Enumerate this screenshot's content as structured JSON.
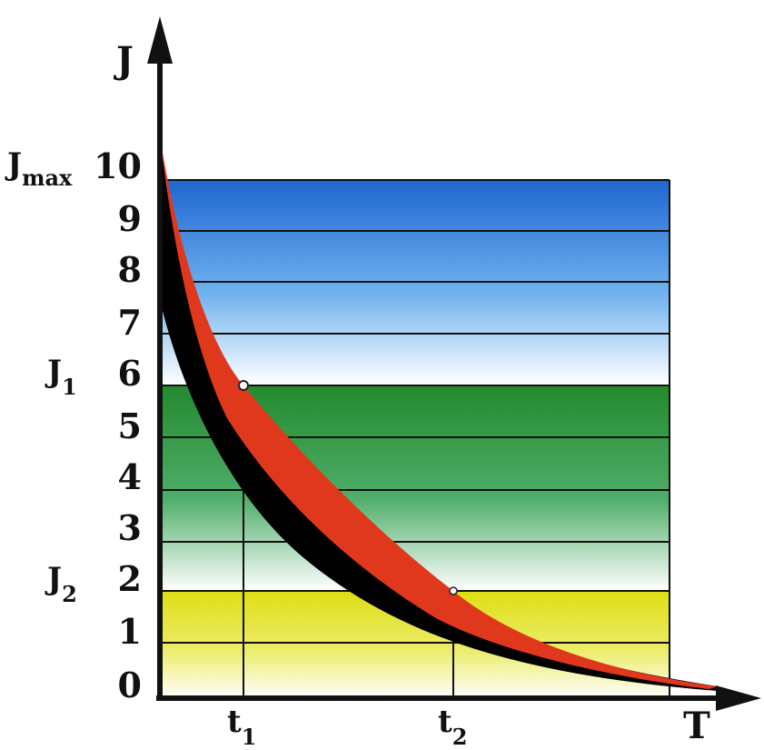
{
  "axis": {
    "y_name": "J",
    "x_name": "T",
    "y_ticks": [
      "0",
      "1",
      "2",
      "3",
      "4",
      "5",
      "6",
      "7",
      "8",
      "9",
      "10"
    ]
  },
  "y_markers": [
    {
      "base": "J",
      "sub": "max"
    },
    {
      "base": "J",
      "sub": "1"
    },
    {
      "base": "J",
      "sub": "2"
    }
  ],
  "x_markers": [
    {
      "base": "t",
      "sub": "1"
    },
    {
      "base": "t",
      "sub": "2"
    }
  ],
  "colors": {
    "band_blue": "#2e78d6",
    "band_green": "#2f8f3a",
    "band_yellow": "#e2e21c",
    "curve_red": "#e0381c",
    "curve_black": "#000000",
    "grid": "#111111"
  }
}
